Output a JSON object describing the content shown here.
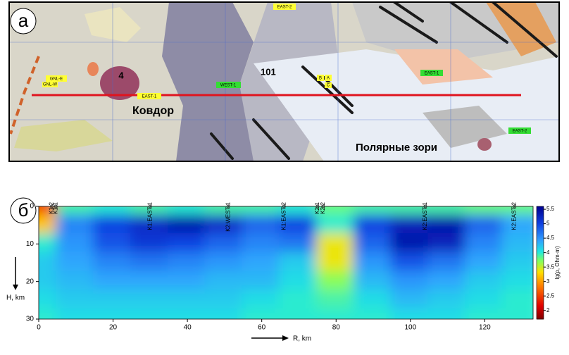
{
  "map": {
    "panel_label": "а",
    "massif_label": "4",
    "town_1": "Ковдор",
    "town_2": "Полярные зори",
    "belt_label": "101",
    "tags": [
      "GNL-E",
      "GNL-W",
      "EAST-1",
      "WEST-1",
      "EAST-2",
      "B",
      "A",
      "C",
      "EAST-1",
      "EAST-2"
    ]
  },
  "chart_data": {
    "type": "heatmap",
    "panel_label": "б",
    "x_label": "R, km",
    "y_label": "H, km",
    "colorbar_label": "lg(ρ, Ohm·m)",
    "x": [
      0,
      10,
      20,
      30,
      40,
      50,
      60,
      70,
      80,
      90,
      100,
      110,
      120,
      130
    ],
    "y": [
      0,
      5,
      10,
      15,
      20,
      25,
      30
    ],
    "z": [
      [
        2.5,
        3.9,
        4.0,
        3.9,
        4.0,
        3.9,
        3.9,
        4.0,
        3.8,
        3.9,
        3.9,
        3.9,
        3.8,
        3.8
      ],
      [
        3.2,
        4.6,
        5.0,
        5.2,
        5.4,
        5.2,
        4.8,
        5.0,
        4.0,
        5.0,
        5.3,
        5.4,
        4.8,
        4.4
      ],
      [
        4.0,
        4.5,
        4.9,
        5.1,
        5.0,
        4.8,
        4.6,
        4.7,
        3.4,
        4.8,
        5.4,
        5.3,
        4.6,
        4.3
      ],
      [
        4.2,
        4.4,
        4.6,
        4.7,
        4.6,
        4.5,
        4.4,
        4.2,
        3.4,
        4.5,
        4.9,
        4.7,
        4.4,
        4.2
      ],
      [
        4.2,
        4.3,
        4.4,
        4.4,
        4.4,
        4.3,
        4.3,
        4.1,
        3.7,
        4.3,
        4.5,
        4.4,
        4.2,
        4.1
      ],
      [
        4.1,
        4.2,
        4.2,
        4.2,
        4.2,
        4.2,
        4.1,
        4.0,
        3.9,
        4.1,
        4.3,
        4.2,
        4.1,
        4.0
      ],
      [
        4.0,
        4.1,
        4.1,
        4.1,
        4.1,
        4.1,
        4.0,
        4.0,
        4.0,
        4.0,
        4.1,
        4.1,
        4.0,
        4.0
      ]
    ],
    "xlim": [
      0,
      133
    ],
    "ylim": [
      0,
      30
    ],
    "xticks": [
      0,
      20,
      40,
      60,
      80,
      100,
      120
    ],
    "yticks": [
      0,
      10,
      20,
      30
    ],
    "clim": [
      1.7,
      5.6
    ],
    "cticks": [
      2,
      2.5,
      3,
      3.5,
      4,
      4.5,
      5,
      5.5
    ],
    "stations": {
      "names": [
        "K1-2",
        "K1-1",
        "K1:EAST-1",
        "K2:WEST-1",
        "K1:EAST-2",
        "K2-1",
        "K2-2",
        "K2:EAST-1",
        "K2:EAST-2"
      ],
      "x": [
        3.5,
        4.6,
        30,
        51,
        66,
        75,
        76.5,
        104,
        128
      ]
    }
  }
}
